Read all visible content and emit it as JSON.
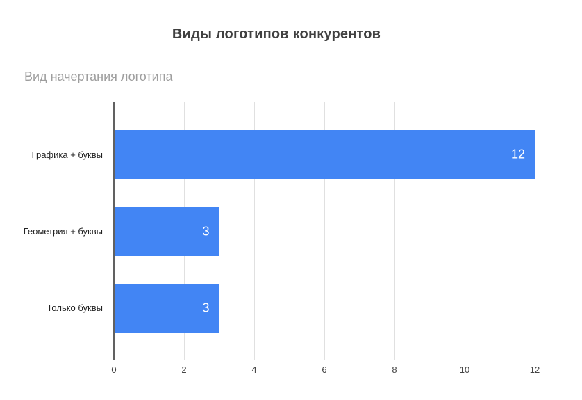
{
  "chart_data": {
    "type": "bar",
    "orientation": "horizontal",
    "title": "Виды логотипов конкурентов",
    "axis_title": "Вид начертания логотипа",
    "categories": [
      "Графика + буквы",
      "Геометрия + буквы",
      "Только буквы"
    ],
    "values": [
      12,
      3,
      3
    ],
    "value_labels": [
      "12",
      "3",
      "3"
    ],
    "x_ticks": [
      0,
      2,
      4,
      6,
      8,
      10,
      12
    ],
    "xlim": [
      0,
      12
    ],
    "grid": true,
    "legend": "none"
  },
  "colors": {
    "bar": "#4285f4",
    "value_label": "#ffffff",
    "title": "#404040",
    "axis_title": "#9e9e9e",
    "category_label": "#222222",
    "tick_label": "#444444",
    "gridline": "#e0e0e0",
    "axis_line": "#616161",
    "background": "#ffffff"
  }
}
